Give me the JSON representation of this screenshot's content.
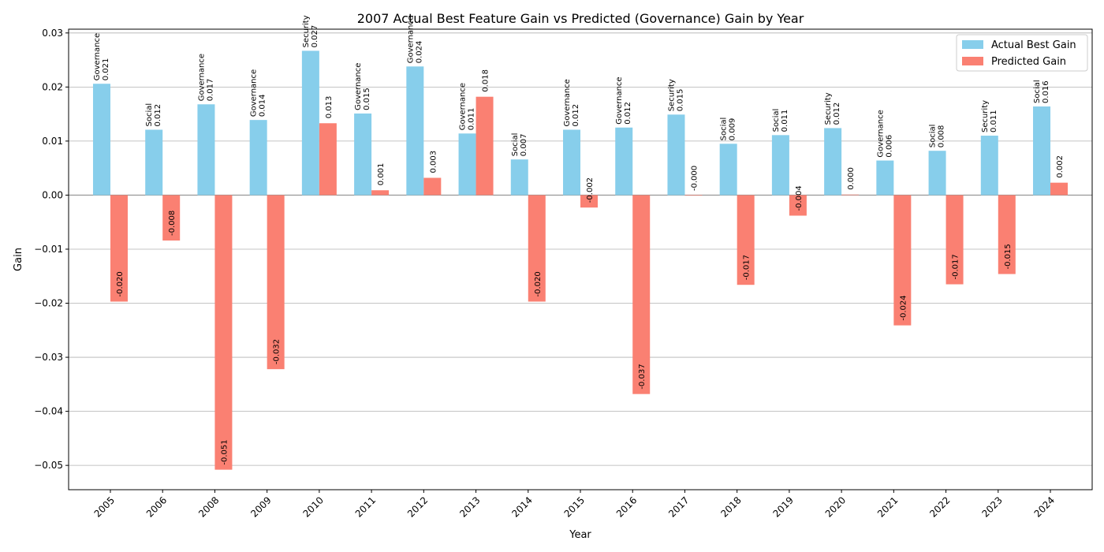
{
  "chart_data": {
    "type": "bar",
    "title": "2007 Actual Best Feature Gain vs Predicted (Governance) Gain by Year",
    "xlabel": "Year",
    "ylabel": "Gain",
    "ylim": [
      -0.0545,
      0.0307
    ],
    "yticks": [
      -0.05,
      -0.04,
      -0.03,
      -0.02,
      -0.01,
      0.0,
      0.01,
      0.02,
      0.03
    ],
    "ytick_labels": [
      "−0.05",
      "−0.04",
      "−0.03",
      "−0.02",
      "−0.01",
      "0.00",
      "0.01",
      "0.02",
      "0.03"
    ],
    "grid": "horizontal",
    "legend_position": "top-right",
    "categories": [
      "2005",
      "2006",
      "2008",
      "2009",
      "2010",
      "2011",
      "2012",
      "2013",
      "2014",
      "2015",
      "2016",
      "2017",
      "2018",
      "2019",
      "2020",
      "2021",
      "2022",
      "2023",
      "2024"
    ],
    "series": [
      {
        "name": "Actual Best Gain",
        "color": "#87ceeb",
        "values": [
          0.0206,
          0.0121,
          0.0168,
          0.0139,
          0.0267,
          0.0151,
          0.0238,
          0.0114,
          0.0066,
          0.0121,
          0.0125,
          0.0149,
          0.0095,
          0.0111,
          0.0124,
          0.0064,
          0.0082,
          0.011,
          0.0164
        ],
        "labels": [
          "0.021",
          "0.012",
          "0.017",
          "0.014",
          "0.027",
          "0.015",
          "0.024",
          "0.011",
          "0.007",
          "0.012",
          "0.012",
          "0.015",
          "0.009",
          "0.011",
          "0.012",
          "0.006",
          "0.008",
          "0.011",
          "0.016"
        ],
        "features": [
          "Governance",
          "Social",
          "Governance",
          "Governance",
          "Security",
          "Governance",
          "Governance",
          "Governance",
          "Social",
          "Governance",
          "Governance",
          "Security",
          "Social",
          "Social",
          "Security",
          "Governance",
          "Social",
          "Security",
          "Social"
        ]
      },
      {
        "name": "Predicted Gain",
        "color": "#fa8072",
        "values": [
          -0.0197,
          -0.0084,
          -0.0508,
          -0.0322,
          0.0133,
          0.0009,
          0.0032,
          0.0182,
          -0.0197,
          -0.0023,
          -0.0368,
          -0.0001,
          -0.0166,
          -0.0038,
          0.0001,
          -0.0241,
          -0.0165,
          -0.0146,
          0.0023
        ],
        "labels": [
          "-0.020",
          "-0.008",
          "-0.051",
          "-0.032",
          "0.013",
          "0.001",
          "0.003",
          "0.018",
          "-0.020",
          "-0.002",
          "-0.037",
          "-0.000",
          "-0.017",
          "-0.004",
          "0.000",
          "-0.024",
          "-0.017",
          "-0.015",
          "0.002"
        ]
      }
    ]
  }
}
